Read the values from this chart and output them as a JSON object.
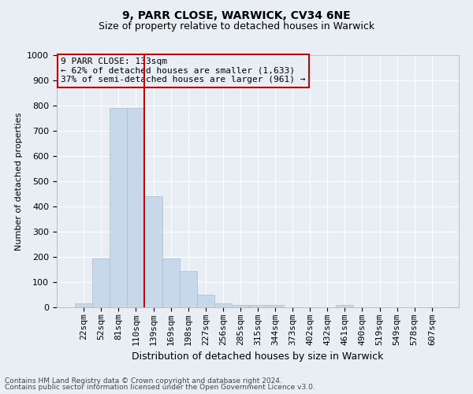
{
  "title1": "9, PARR CLOSE, WARWICK, CV34 6NE",
  "title2": "Size of property relative to detached houses in Warwick",
  "xlabel": "Distribution of detached houses by size in Warwick",
  "ylabel": "Number of detached properties",
  "bar_color": "#c8d8eb",
  "bar_edgecolor": "#a8bfd0",
  "categories": [
    "22sqm",
    "52sqm",
    "81sqm",
    "110sqm",
    "139sqm",
    "169sqm",
    "198sqm",
    "227sqm",
    "256sqm",
    "285sqm",
    "315sqm",
    "344sqm",
    "373sqm",
    "402sqm",
    "432sqm",
    "461sqm",
    "490sqm",
    "519sqm",
    "549sqm",
    "578sqm",
    "607sqm"
  ],
  "values": [
    15,
    195,
    790,
    790,
    440,
    195,
    145,
    50,
    15,
    10,
    10,
    10,
    0,
    0,
    0,
    10,
    0,
    0,
    0,
    0,
    0
  ],
  "ylim": [
    0,
    1000
  ],
  "yticks": [
    0,
    100,
    200,
    300,
    400,
    500,
    600,
    700,
    800,
    900,
    1000
  ],
  "vline_color": "#cc0000",
  "vline_xindex": 3.5,
  "annotation_title": "9 PARR CLOSE: 133sqm",
  "annotation_line1": "← 62% of detached houses are smaller (1,633)",
  "annotation_line2": "37% of semi-detached houses are larger (961) →",
  "annotation_box_edgecolor": "#cc0000",
  "footer1": "Contains HM Land Registry data © Crown copyright and database right 2024.",
  "footer2": "Contains public sector information licensed under the Open Government Licence v3.0.",
  "background_color": "#e8eef4",
  "grid_color": "#ffffff",
  "title1_fontsize": 10,
  "title2_fontsize": 9,
  "ylabel_fontsize": 8,
  "xlabel_fontsize": 9,
  "tick_fontsize": 8,
  "annotation_fontsize": 8
}
